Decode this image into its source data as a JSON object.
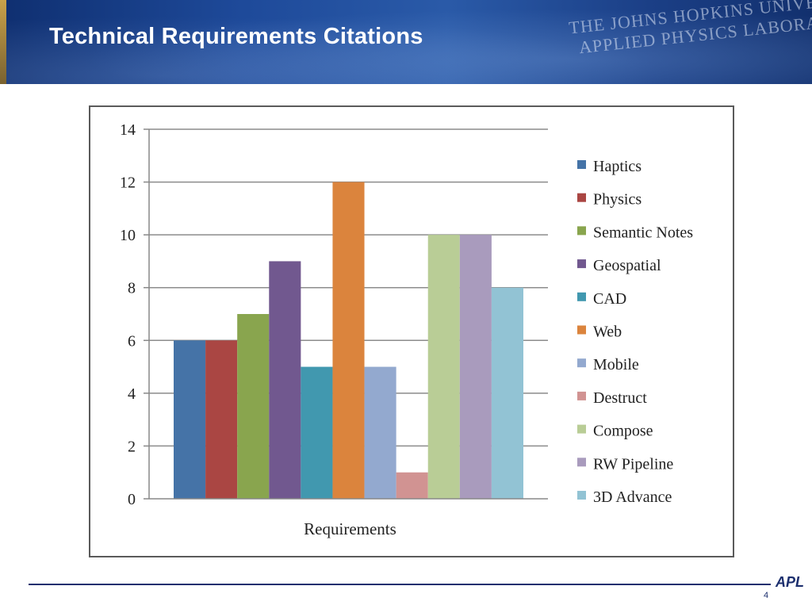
{
  "slide": {
    "title": "Technical Requirements Citations",
    "watermark_line1": "THE JOHNS HOPKINS UNIVE",
    "watermark_line2": "APPLIED PHYSICS LABORA",
    "logo": "APL",
    "page_number": "4"
  },
  "colors": {
    "banner": "#1e4a9a",
    "footer": "#1c2f6e"
  },
  "chart_data": {
    "type": "bar",
    "title": "",
    "xlabel": "Requirements",
    "ylabel": "",
    "ylim": [
      0,
      14
    ],
    "yticks": [
      0,
      2,
      4,
      6,
      8,
      10,
      12,
      14
    ],
    "grid": true,
    "legend_position": "right",
    "series": [
      {
        "name": "Haptics",
        "value": 6,
        "color": "#4573a7"
      },
      {
        "name": "Physics",
        "value": 6,
        "color": "#aa4643"
      },
      {
        "name": "Semantic Notes",
        "value": 7,
        "color": "#89a54e"
      },
      {
        "name": "Geospatial",
        "value": 9,
        "color": "#71588f"
      },
      {
        "name": "CAD",
        "value": 5,
        "color": "#4198af"
      },
      {
        "name": "Web",
        "value": 12,
        "color": "#db843d"
      },
      {
        "name": "Mobile",
        "value": 5,
        "color": "#93a9cf"
      },
      {
        "name": "Destruct",
        "value": 1,
        "color": "#d19392"
      },
      {
        "name": "Compose",
        "value": 10,
        "color": "#b9cd96"
      },
      {
        "name": "RW Pipeline",
        "value": 10,
        "color": "#a99bbd"
      },
      {
        "name": "3D Advance",
        "value": 8,
        "color": "#92c3d4"
      }
    ]
  }
}
